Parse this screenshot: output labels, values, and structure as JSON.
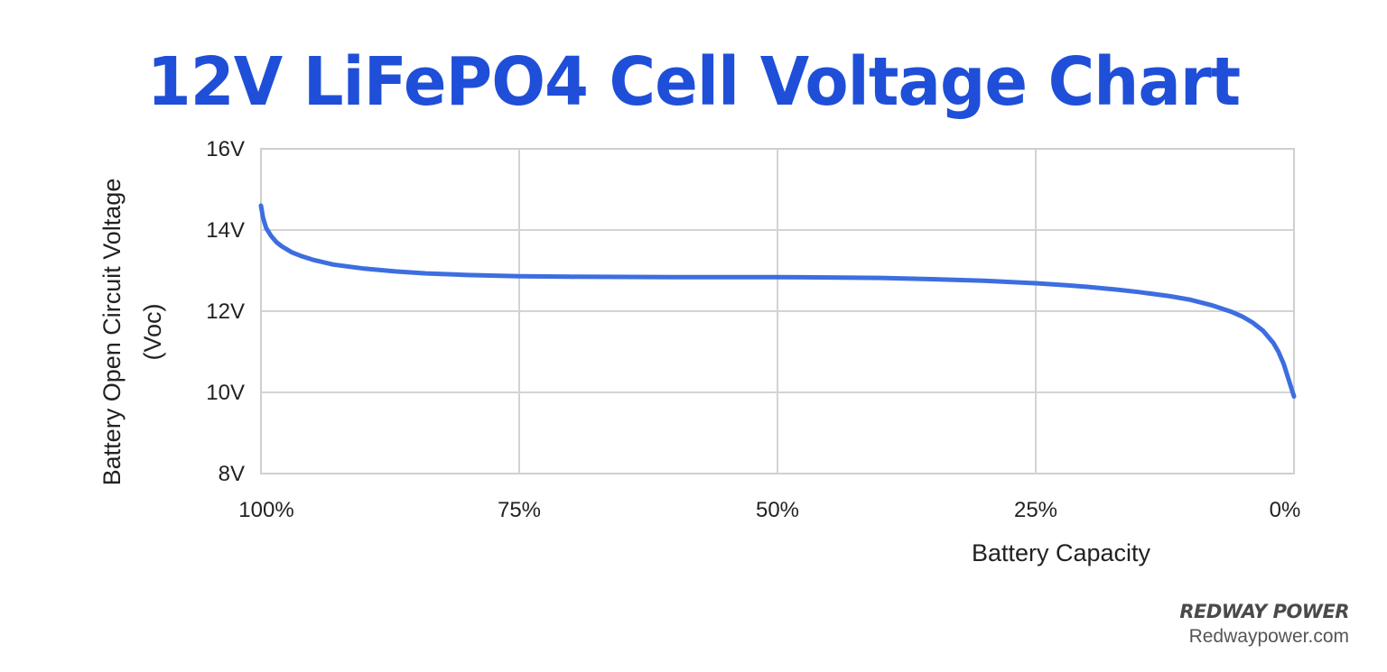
{
  "chart_data": {
    "type": "line",
    "title": "12V LiFePO4 Cell Voltage Chart",
    "xlabel": "Battery Capacity",
    "ylabel": "Battery Open Circuit Voltage\n(Voc)",
    "ylabel_line1": "Battery Open Circuit Voltage",
    "ylabel_line2": "(Voc)",
    "x_ticks": [
      "100%",
      "75%",
      "50%",
      "25%",
      "0%"
    ],
    "x_tick_values": [
      100,
      75,
      50,
      25,
      0
    ],
    "y_ticks": [
      "16V",
      "14V",
      "12V",
      "10V",
      "8V"
    ],
    "y_tick_values": [
      16,
      14,
      12,
      10,
      8
    ],
    "xlim": [
      100,
      0
    ],
    "ylim": [
      8,
      16
    ],
    "grid": true,
    "series": [
      {
        "color": "#3d6ee0",
        "x": [
          100,
          99.8,
          99.5,
          99,
          98.5,
          98,
          97,
          96,
          95,
          93,
          90,
          87,
          84,
          80,
          75,
          70,
          60,
          50,
          45,
          40,
          35,
          30,
          25,
          22,
          20,
          17,
          15,
          12,
          10,
          8,
          6,
          5,
          4,
          3,
          2,
          1.5,
          1,
          0.5,
          0
        ],
        "y": [
          14.6,
          14.3,
          14.05,
          13.85,
          13.7,
          13.6,
          13.45,
          13.35,
          13.27,
          13.15,
          13.05,
          12.98,
          12.93,
          12.89,
          12.86,
          12.85,
          12.84,
          12.84,
          12.83,
          12.82,
          12.79,
          12.75,
          12.69,
          12.64,
          12.6,
          12.53,
          12.47,
          12.37,
          12.28,
          12.15,
          11.98,
          11.87,
          11.72,
          11.52,
          11.22,
          11.0,
          10.7,
          10.3,
          9.9
        ]
      }
    ]
  },
  "brand": {
    "name": "REDWAY POWER",
    "url": "Redwaypower.com"
  }
}
